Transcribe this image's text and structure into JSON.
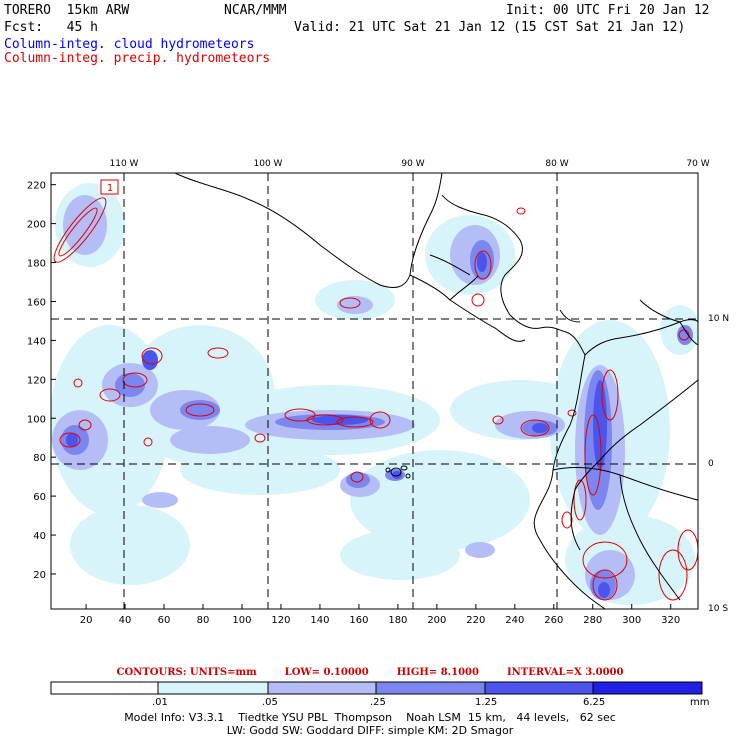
{
  "header": {
    "model": "TORERO  15km ARW",
    "org": "NCAR/MMM",
    "init": "Init: 00 UTC Fri 20 Jan 12",
    "fcst": "Fcst:   45 h",
    "valid": "Valid: 21 UTC Sat 21 Jan 12 (15 CST Sat 21 Jan 12)",
    "field_cloud": "Column-integ. cloud hydrometeors",
    "field_precip": "Column-integ. precip. hydrometeors"
  },
  "colors": {
    "cloud_label": "#0000ff",
    "precip_label": "#e00000",
    "precip_contour": "#e00000",
    "shade_1": "#d7f4fb",
    "shade_2": "#b4bdf5",
    "shade_3": "#7c86f1",
    "shade_4": "#4b55ee",
    "shade_5": "#1f1fe6",
    "coast": "#000000"
  },
  "axes": {
    "x_ticks": [
      "20",
      "40",
      "60",
      "80",
      "100",
      "120",
      "140",
      "160",
      "180",
      "200",
      "220",
      "240",
      "260",
      "280",
      "300",
      "320"
    ],
    "y_ticks": [
      "20",
      "40",
      "60",
      "80",
      "100",
      "120",
      "140",
      "160",
      "180",
      "200",
      "220"
    ],
    "lon_labels": [
      "110 W",
      "100 W",
      "90 W",
      "80 W",
      "70 W"
    ],
    "lat_labels": [
      "10 N",
      "0",
      "10 S"
    ]
  },
  "contour_info": {
    "units": "CONTOURS:  UNITS=mm",
    "low": "LOW= 0.10000",
    "high": "HIGH=  8.1000",
    "interval": "INTERVAL=X  3.0000"
  },
  "colorbar": {
    "labels": [
      ".01",
      ".05",
      ".25",
      "1.25",
      "6.25"
    ],
    "unit": "mm"
  },
  "model_info": {
    "line1": "Model Info: V3.3.1    Tiedtke YSU PBL  Thompson    Noah LSM  15 km,   44 levels,   62 sec",
    "line2": "LW: Godd SW: Goddard DIFF: simple KM: 2D Smagor"
  },
  "map": {
    "label_1": "1"
  }
}
